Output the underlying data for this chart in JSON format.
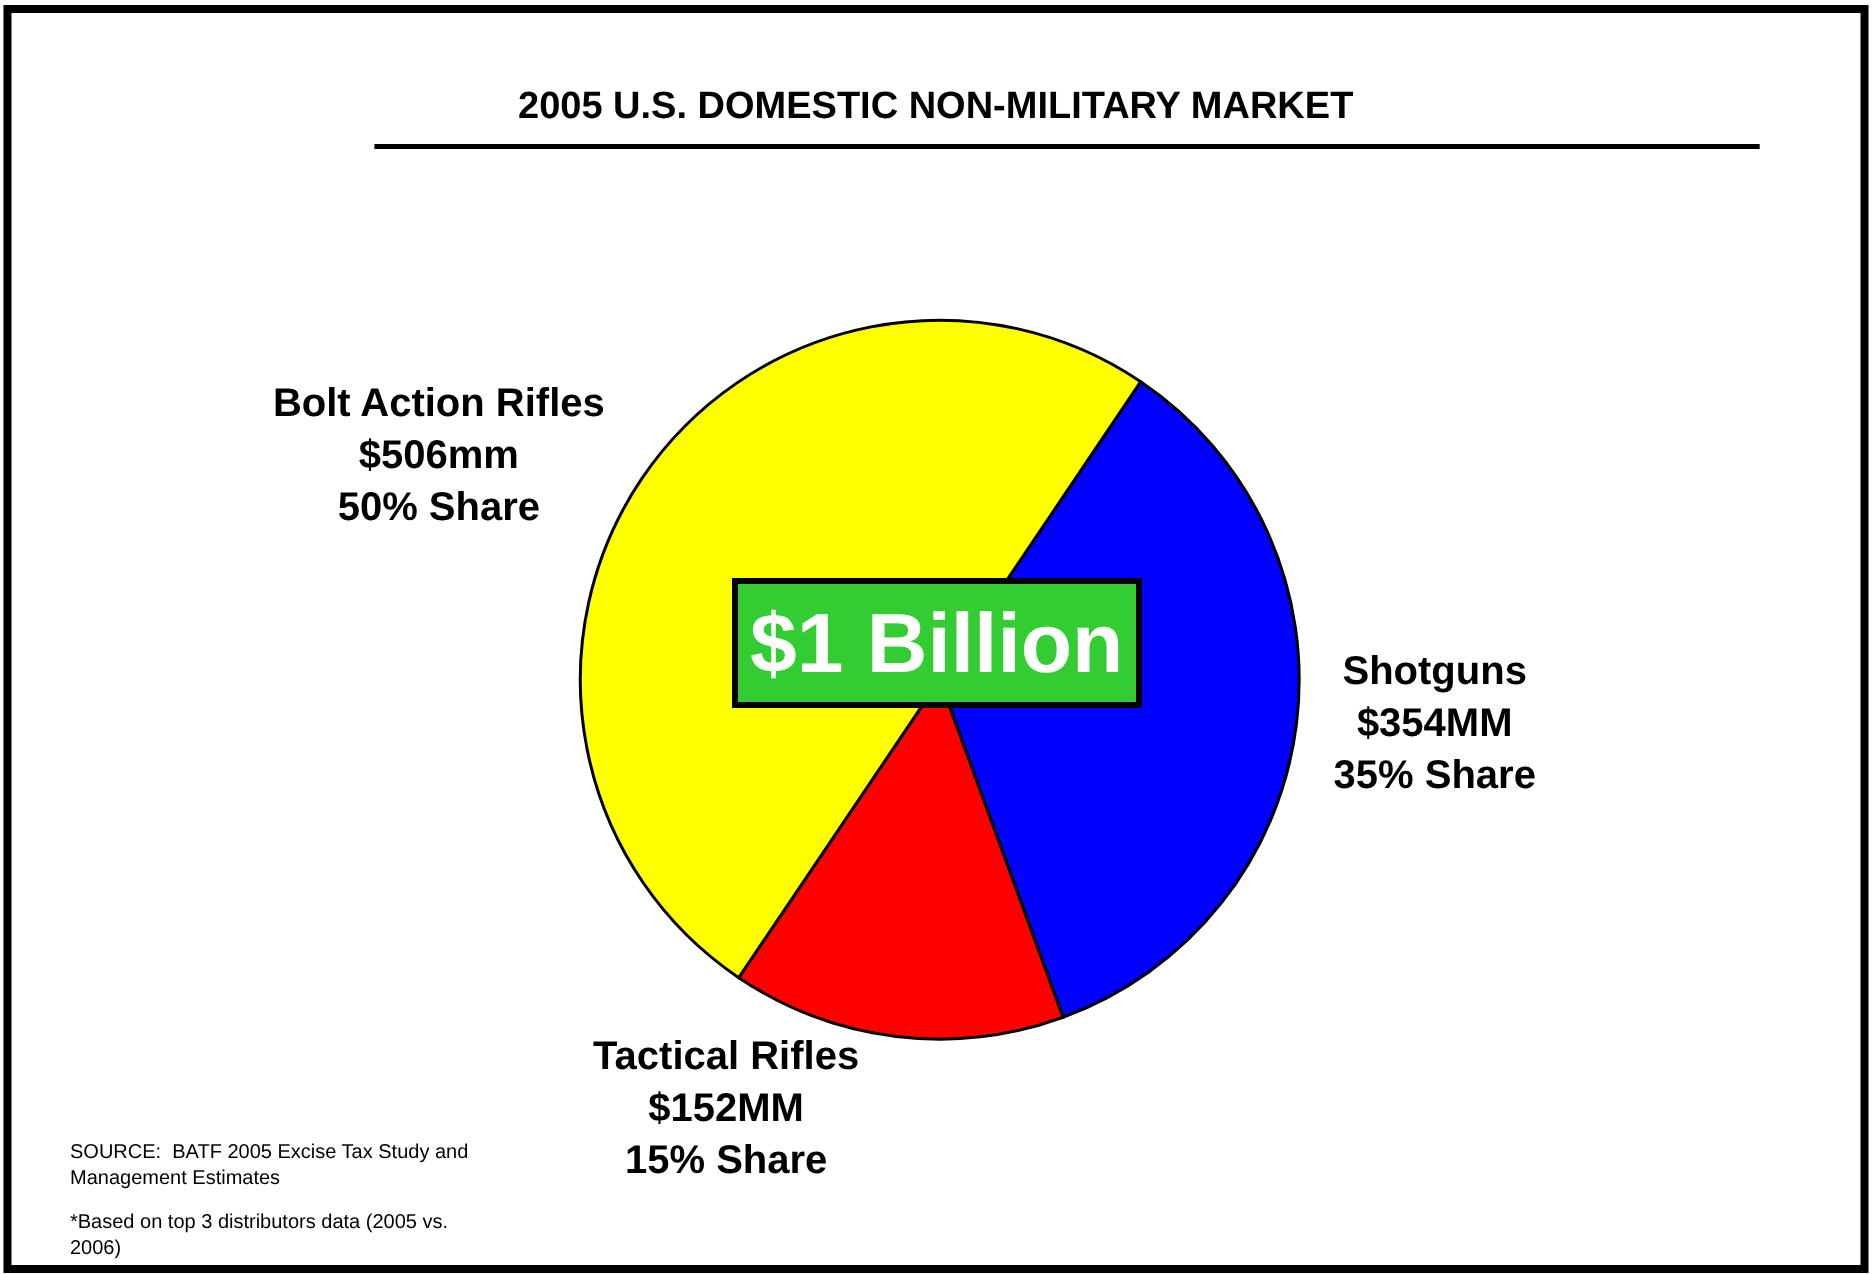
{
  "chart_data": {
    "type": "pie",
    "title": "2005 U.S. DOMESTIC NON-MILITARY MARKET",
    "categories": [
      "Shotguns",
      "Tactical Rifles",
      "Bolt Action Rifles"
    ],
    "values": [
      354,
      152,
      506
    ],
    "value_labels": [
      "$354MM\n35% Share",
      "$152MM\n15% Share",
      "$506mm\n50% Share"
    ],
    "colors": [
      "#0000ff",
      "#ff0000",
      "#ffff00"
    ],
    "annotations": [
      "$1 Billion",
      "SOURCE:  BATF 2005 Excise Tax Study and Management Estimates",
      "*Based on top 3 distributors data (2005 vs. 2006)"
    ],
    "legend": false
  }
}
